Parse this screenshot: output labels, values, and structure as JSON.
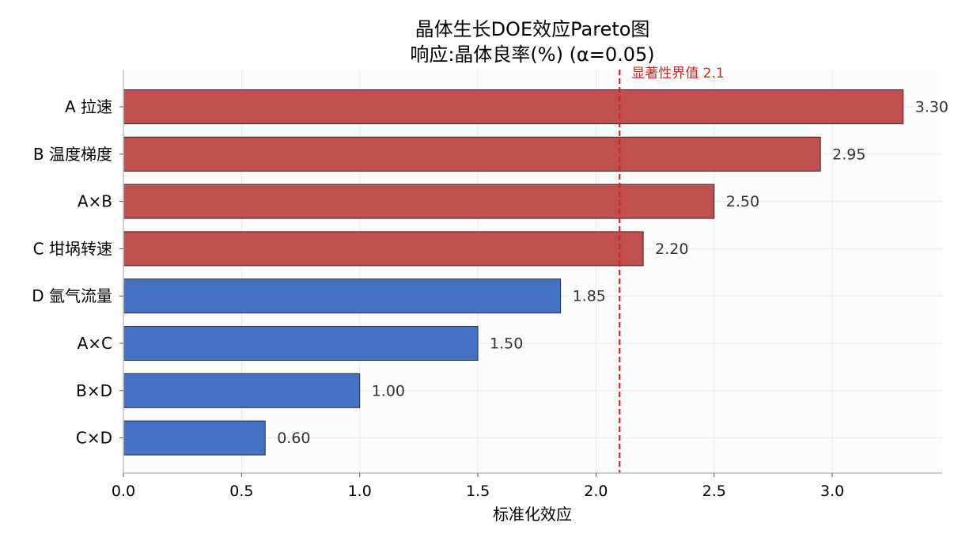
{
  "chart_data": {
    "type": "bar",
    "orientation": "horizontal",
    "title": "晶体生长DOE效应Pareto图",
    "subtitle": "响应:晶体良率(%)  (α=0.05)",
    "xlabel": "标准化效应",
    "ylabel": "",
    "xlim": [
      0,
      3.465
    ],
    "xticks": [
      0.0,
      0.5,
      1.0,
      1.5,
      2.0,
      2.5,
      3.0
    ],
    "xtick_labels": [
      "0.0",
      "0.5",
      "1.0",
      "1.5",
      "2.0",
      "2.5",
      "3.0"
    ],
    "grid": true,
    "categories": [
      "A 拉速",
      "B 温度梯度",
      "A×B",
      "C 坩埚转速",
      "D 氩气流量",
      "A×C",
      "B×D",
      "C×D"
    ],
    "values": [
      3.3,
      2.95,
      2.5,
      2.2,
      1.85,
      1.5,
      1.0,
      0.6
    ],
    "value_labels": [
      "3.30",
      "2.95",
      "2.50",
      "2.20",
      "1.85",
      "1.50",
      "1.00",
      "0.60"
    ],
    "significant": [
      true,
      true,
      true,
      true,
      false,
      false,
      false,
      false
    ],
    "threshold": {
      "value": 2.1,
      "label": "显著性界值 2.1",
      "color": "#c62828"
    },
    "colors": {
      "significant": "#c0504d",
      "not_significant": "#4472c4",
      "bar_edge": "#2b2b2b",
      "plot_background": "#fcfcfc",
      "grid": "#e8e8e8",
      "value_label": "#333333"
    }
  }
}
